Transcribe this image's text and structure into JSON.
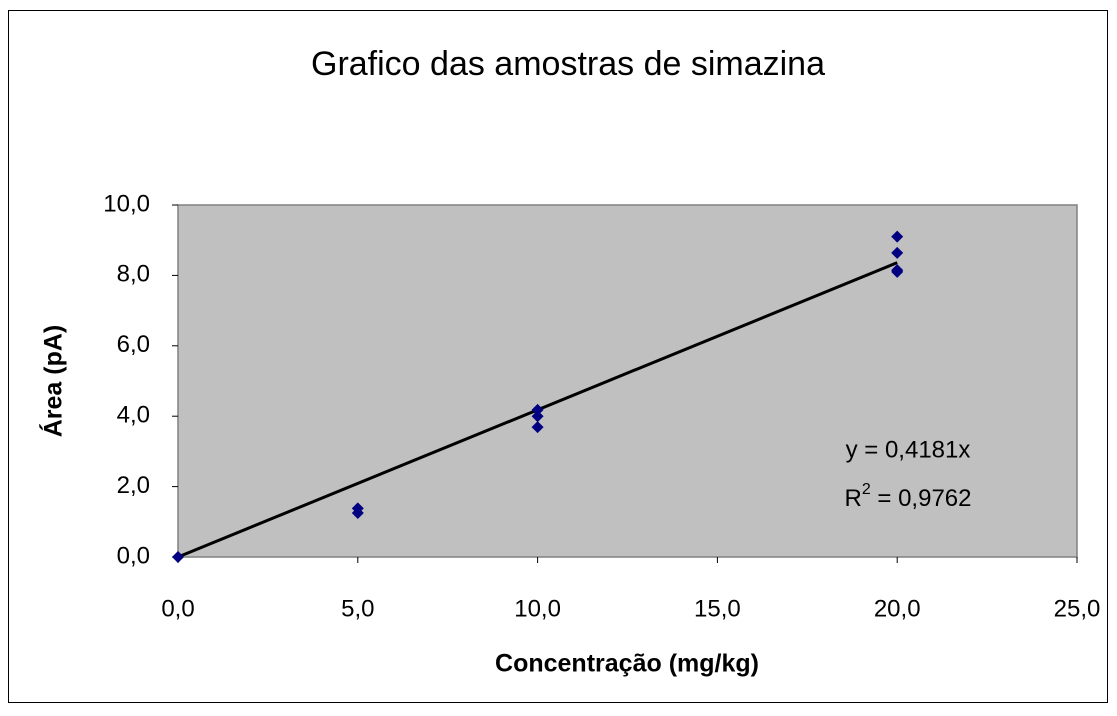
{
  "chart_data": {
    "type": "scatter",
    "title": "Grafico das amostras de simazina",
    "x_label": "Concentração (mg/kg)",
    "y_label": "Área (pA)",
    "x": [
      0,
      5,
      5,
      10,
      10,
      10,
      20,
      20,
      20,
      20
    ],
    "values": [
      0,
      1.38,
      1.25,
      4.18,
      4.0,
      3.69,
      9.1,
      8.64,
      8.15,
      8.1
    ],
    "color": "#000080",
    "xlim": [
      0,
      25
    ],
    "ylim": [
      0,
      10
    ],
    "xticks": [
      {
        "value": 0,
        "label": "0,0"
      },
      {
        "value": 5,
        "label": "5,0"
      },
      {
        "value": 10,
        "label": "10,0"
      },
      {
        "value": 15,
        "label": "15,0"
      },
      {
        "value": 20,
        "label": "20,0"
      },
      {
        "value": 25,
        "label": "25,0"
      }
    ],
    "yticks": [
      {
        "value": 0,
        "label": "0,0"
      },
      {
        "value": 2,
        "label": "2,0"
      },
      {
        "value": 4,
        "label": "4,0"
      },
      {
        "value": 6,
        "label": "6,0"
      },
      {
        "value": 8,
        "label": "8,0"
      },
      {
        "value": 10,
        "label": "10,0"
      }
    ],
    "trendline": {
      "slope": 0.4181,
      "color": "#000000",
      "equation": "y = 0,4181x",
      "r2_base": "R",
      "r2_sup": "2",
      "r2_rest": " = 0,9762"
    }
  }
}
